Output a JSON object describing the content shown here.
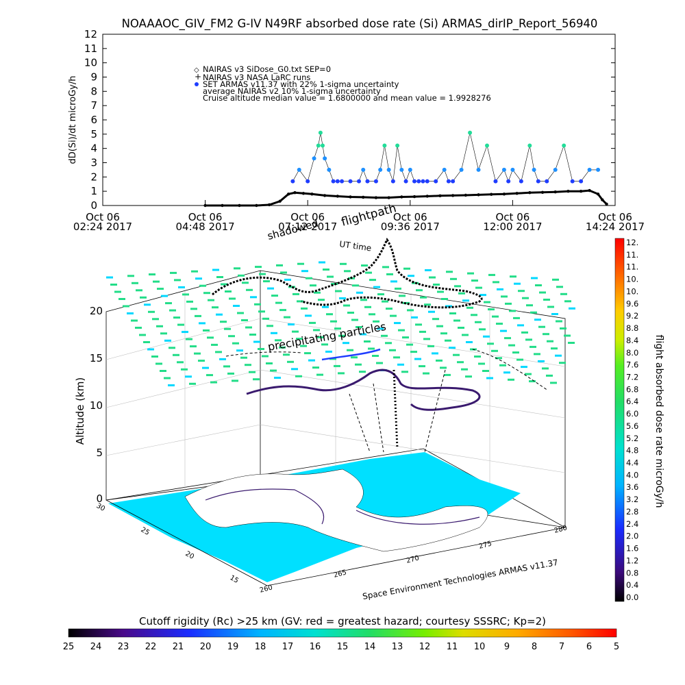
{
  "title": "NOAAAOC_GIV_FM2 G-IV    N49RF  absorbed dose rate (Si) ARMAS_dirIP_Report_56940",
  "chart_data": [
    {
      "type": "scatter",
      "ylabel": "dD(Si)/dt microGy/h",
      "ylim": [
        0,
        12
      ],
      "yticks": [
        "0",
        "1",
        "2",
        "3",
        "4",
        "5",
        "6",
        "7",
        "8",
        "9",
        "10",
        "11",
        "12"
      ],
      "xlim": [
        2.4,
        14.4
      ],
      "xticks": [
        {
          "value": 2.4,
          "line1": "Oct 06",
          "line2": "02:24 2017"
        },
        {
          "value": 4.8,
          "line1": "Oct 06",
          "line2": "04:48 2017"
        },
        {
          "value": 7.2,
          "line1": "Oct 06",
          "line2": "07:12 2017"
        },
        {
          "value": 9.6,
          "line1": "Oct 06",
          "line2": "09:36 2017"
        },
        {
          "value": 12.0,
          "line1": "Oct 06",
          "line2": "12:00 2017"
        },
        {
          "value": 14.4,
          "line1": "Oct 06",
          "line2": "14:24 2017"
        }
      ],
      "legend": [
        {
          "symbol": "◇",
          "label": "NAIRAS v3 SiDose_G0.txt SEP=0"
        },
        {
          "symbol": "+",
          "label": "NAIRAS v3 NASA LaRC runs"
        },
        {
          "symbol": "●",
          "label": "SET ARMAS v11.37 with 22% 1-sigma uncertainty",
          "color": "#1f3dff"
        },
        {
          "symbol": "",
          "label": "average NAIRAS v2 10% 1-sigma uncertainty"
        },
        {
          "symbol": "",
          "label": "Cruise altitude median value = 1.6800000 and mean value = 1.9928276"
        }
      ],
      "nairas_series": {
        "name": "NAIRAS v3",
        "x": [
          4.8,
          5.2,
          5.6,
          6.0,
          6.3,
          6.55,
          6.75,
          6.9,
          7.1,
          7.3,
          7.6,
          7.9,
          8.2,
          8.5,
          8.8,
          9.1,
          9.4,
          9.7,
          10.0,
          10.3,
          10.6,
          10.9,
          11.2,
          11.5,
          11.8,
          12.1,
          12.4,
          12.7,
          13.0,
          13.3,
          13.6,
          13.8,
          14.0,
          14.1,
          14.2
        ],
        "y": [
          0,
          0,
          0,
          0,
          0.05,
          0.3,
          0.8,
          0.9,
          0.85,
          0.8,
          0.7,
          0.65,
          0.6,
          0.58,
          0.55,
          0.55,
          0.6,
          0.62,
          0.65,
          0.68,
          0.7,
          0.72,
          0.75,
          0.78,
          0.8,
          0.85,
          0.9,
          0.92,
          0.95,
          1.0,
          1.0,
          1.05,
          0.8,
          0.4,
          0.1
        ]
      },
      "armas_series": {
        "name": "SET ARMAS v11.37",
        "x": [
          6.85,
          7.0,
          7.2,
          7.35,
          7.45,
          7.5,
          7.55,
          7.6,
          7.7,
          7.8,
          7.9,
          8.0,
          8.2,
          8.4,
          8.5,
          8.6,
          8.8,
          8.9,
          9.0,
          9.1,
          9.2,
          9.3,
          9.4,
          9.5,
          9.6,
          9.7,
          9.8,
          9.9,
          10.0,
          10.2,
          10.4,
          10.5,
          10.6,
          10.8,
          11.0,
          11.2,
          11.4,
          11.6,
          11.8,
          11.9,
          12.0,
          12.2,
          12.4,
          12.5,
          12.6,
          12.8,
          13.0,
          13.2,
          13.4,
          13.6,
          13.8,
          14.0
        ],
        "y": [
          1.7,
          2.5,
          1.7,
          3.3,
          4.2,
          5.1,
          4.2,
          3.3,
          2.5,
          1.7,
          1.7,
          1.7,
          1.7,
          1.7,
          2.5,
          1.7,
          1.7,
          2.5,
          4.2,
          2.5,
          1.7,
          4.2,
          2.5,
          1.7,
          2.5,
          1.7,
          1.7,
          1.7,
          1.7,
          1.7,
          2.5,
          1.7,
          1.7,
          2.5,
          5.1,
          2.5,
          4.2,
          1.7,
          2.5,
          1.7,
          2.5,
          1.7,
          4.2,
          2.5,
          1.7,
          1.7,
          2.5,
          4.2,
          1.7,
          1.7,
          2.5,
          2.5
        ]
      }
    },
    {
      "type": "3d-trajectory",
      "zlabel": "Altitude (km)",
      "zticks": [
        "0",
        "5",
        "10",
        "15",
        "20"
      ],
      "lat_ticks": [
        "30",
        "25",
        "20",
        "15"
      ],
      "lon_ticks": [
        "260",
        "265",
        "270",
        "275",
        "280"
      ],
      "annotations": [
        "shadowed",
        "flightpath",
        "UT time",
        "precipitating particles",
        "Space Environment Technologies ARMAS v11.37"
      ],
      "dose_colorbar": {
        "label": "flight absorbed dose rate microGy/h",
        "ticks": [
          "12.",
          "11.",
          "11.",
          "10.",
          "10.",
          "9.6",
          "9.2",
          "8.8",
          "8.4",
          "8.0",
          "7.6",
          "7.2",
          "6.8",
          "6.4",
          "6.0",
          "5.6",
          "5.2",
          "4.8",
          "4.4",
          "4.0",
          "3.6",
          "3.2",
          "2.8",
          "2.4",
          "2.0",
          "1.6",
          "1.2",
          "0.8",
          "0.4",
          "0.0"
        ]
      }
    },
    {
      "type": "colorbar",
      "title": "Cutoff rigidity (Rc) >25 km (GV: red = greatest hazard; courtesy SSSRC; Kp=2)",
      "ticks": [
        "25",
        "24",
        "23",
        "22",
        "21",
        "20",
        "19",
        "18",
        "17",
        "16",
        "15",
        "14",
        "13",
        "12",
        "11",
        "10",
        "9",
        "8",
        "7",
        "6",
        "5"
      ]
    }
  ],
  "colors": {
    "armas": "#1f3dff",
    "armas_high": "#22dd99",
    "ocean": "#00e0ff",
    "grid_top": "#22dd88",
    "track": "#3a1a6e"
  }
}
